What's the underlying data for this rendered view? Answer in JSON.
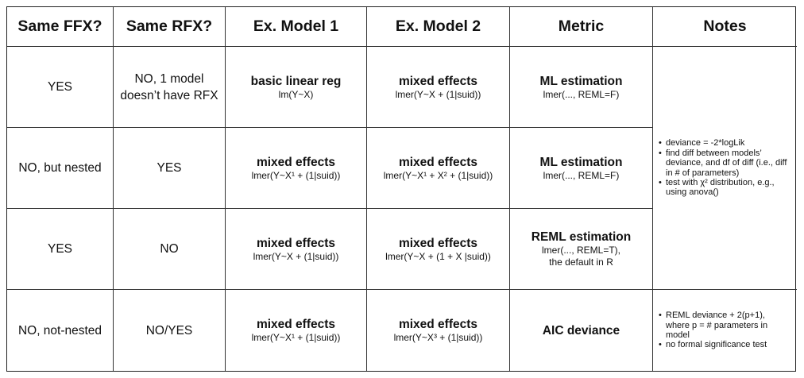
{
  "headers": [
    "Same FFX?",
    "Same RFX?",
    "Ex. Model 1",
    "Ex. Model 2",
    "Metric",
    "Notes"
  ],
  "rows": [
    {
      "same_ffx": "YES",
      "same_rfx": [
        "NO, 1 model",
        "doesn’t have RFX"
      ],
      "model1": {
        "title": "basic linear reg",
        "code": "lm(Y~X)"
      },
      "model2": {
        "title": "mixed effects",
        "code": "lmer(Y~X + (1|suid))"
      },
      "metric": {
        "title": "ML estimation",
        "code": [
          "lmer(..., REML=F)"
        ]
      }
    },
    {
      "same_ffx": "NO, but nested",
      "same_rfx": [
        "YES"
      ],
      "model1": {
        "title": "mixed effects",
        "code": "lmer(Y~X¹ + (1|suid))"
      },
      "model2": {
        "title": "mixed effects",
        "code": "lmer(Y~X¹ + X² + (1|suid))"
      },
      "metric": {
        "title": "ML estimation",
        "code": [
          "lmer(..., REML=F)"
        ]
      }
    },
    {
      "same_ffx": "YES",
      "same_rfx": [
        "NO"
      ],
      "model1": {
        "title": "mixed effects",
        "code": "lmer(Y~X + (1|suid))"
      },
      "model2": {
        "title": "mixed effects",
        "code": "lmer(Y~X + (1 + X |suid))"
      },
      "metric": {
        "title": "REML estimation",
        "code": [
          "lmer(..., REML=T),",
          "the default in R"
        ]
      }
    },
    {
      "same_ffx": "NO, not-nested",
      "same_rfx": [
        "NO/YES"
      ],
      "model1": {
        "title": "mixed effects",
        "code": "lmer(Y~X¹ + (1|suid))"
      },
      "model2": {
        "title": "mixed effects",
        "code": "lmer(Y~X³ + (1|suid))"
      },
      "metric": {
        "title": "AIC deviance",
        "code": []
      }
    }
  ],
  "notes_group1": [
    [
      "deviance = -2*logLik"
    ],
    [
      "find diff between models’",
      "deviance, and df of diff (i.e., diff",
      "in # of parameters)"
    ],
    [
      "test with χ² distribution, e.g.,",
      "using anova()"
    ]
  ],
  "notes_group2": [
    [
      "REML deviance + 2(p+1),",
      "where p = # parameters in",
      "model"
    ],
    [
      "no formal significance test"
    ]
  ]
}
